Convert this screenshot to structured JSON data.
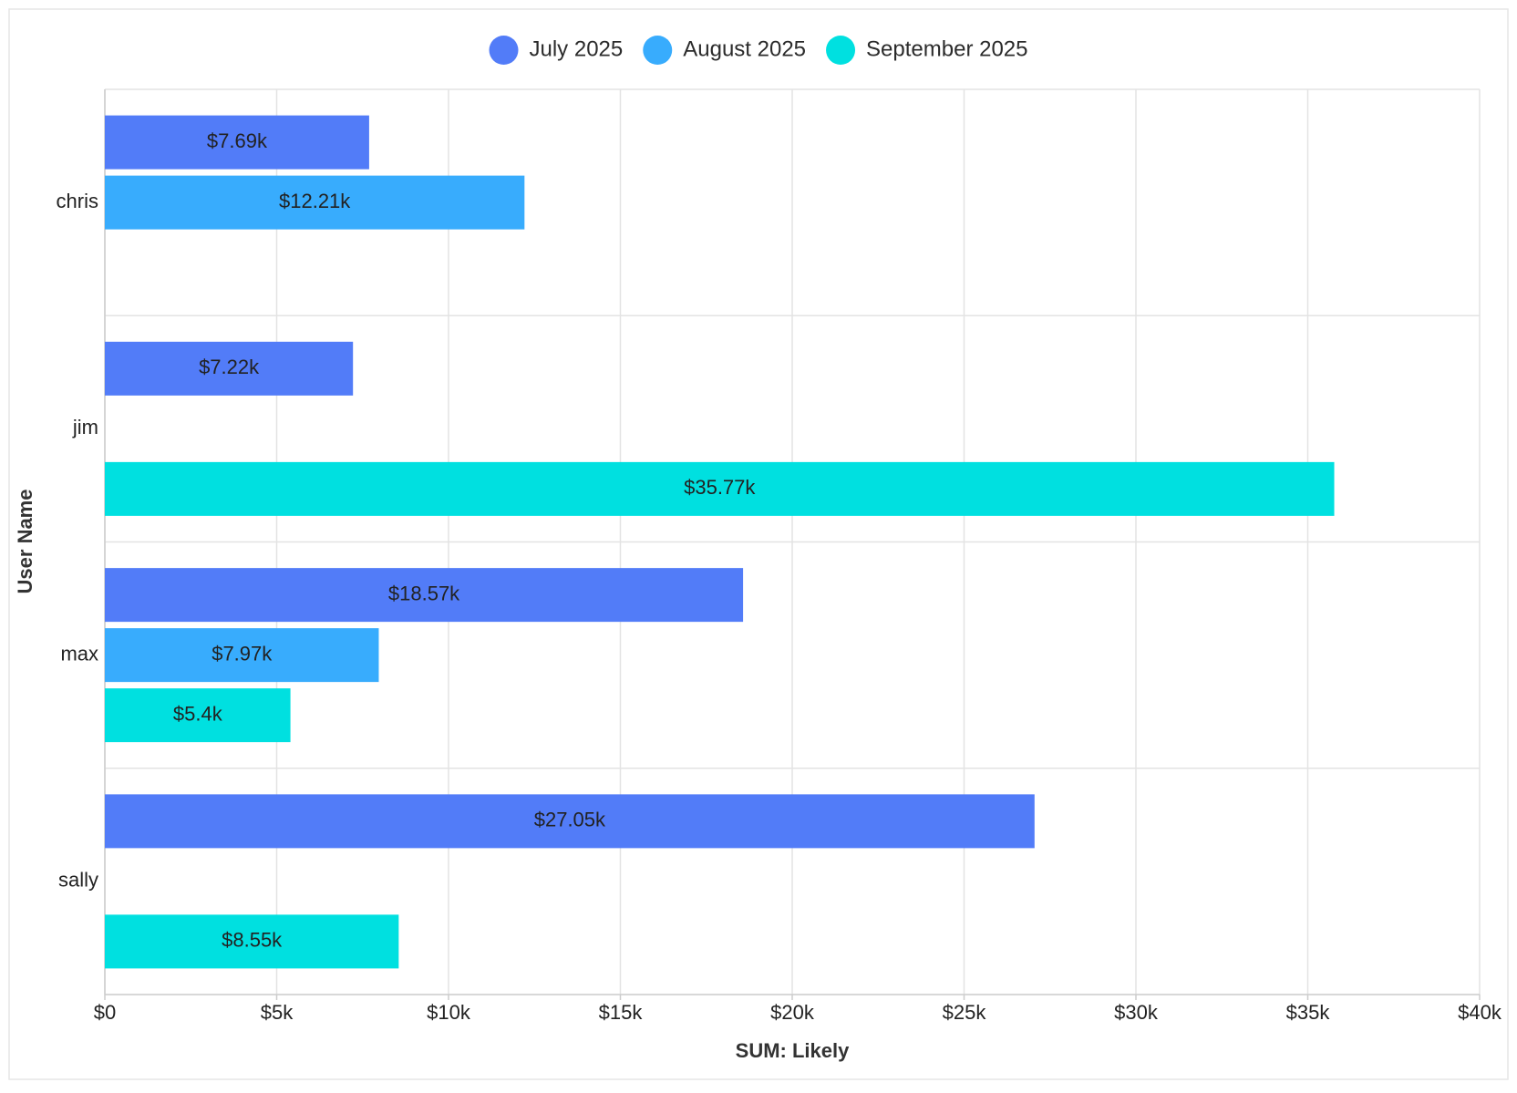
{
  "chart_data": {
    "type": "bar",
    "orientation": "horizontal",
    "categories": [
      "chris",
      "jim",
      "max",
      "sally"
    ],
    "series": [
      {
        "name": "July 2025",
        "color": "#527cf8",
        "values": [
          7690,
          7220,
          18570,
          27050
        ],
        "value_labels": [
          "$7.69k",
          "$7.22k",
          "$18.57k",
          "$27.05k"
        ]
      },
      {
        "name": "August 2025",
        "color": "#38acfd",
        "values": [
          12210,
          null,
          7970,
          null
        ],
        "value_labels": [
          "$12.21k",
          null,
          "$7.97k",
          null
        ]
      },
      {
        "name": "September 2025",
        "color": "#00e0e0",
        "values": [
          null,
          35770,
          5400,
          8550
        ],
        "value_labels": [
          null,
          "$35.77k",
          "$5.4k",
          "$8.55k"
        ]
      }
    ],
    "xlim": [
      0,
      40000
    ],
    "xticks": [
      {
        "value": 0,
        "label": "$0"
      },
      {
        "value": 5000,
        "label": "$5k"
      },
      {
        "value": 10000,
        "label": "$10k"
      },
      {
        "value": 15000,
        "label": "$15k"
      },
      {
        "value": 20000,
        "label": "$20k"
      },
      {
        "value": 25000,
        "label": "$25k"
      },
      {
        "value": 30000,
        "label": "$30k"
      },
      {
        "value": 35000,
        "label": "$35k"
      },
      {
        "value": 40000,
        "label": "$40k"
      }
    ],
    "x_label": "SUM: Likely",
    "y_label": "User Name",
    "grid": true,
    "legend": "top"
  }
}
